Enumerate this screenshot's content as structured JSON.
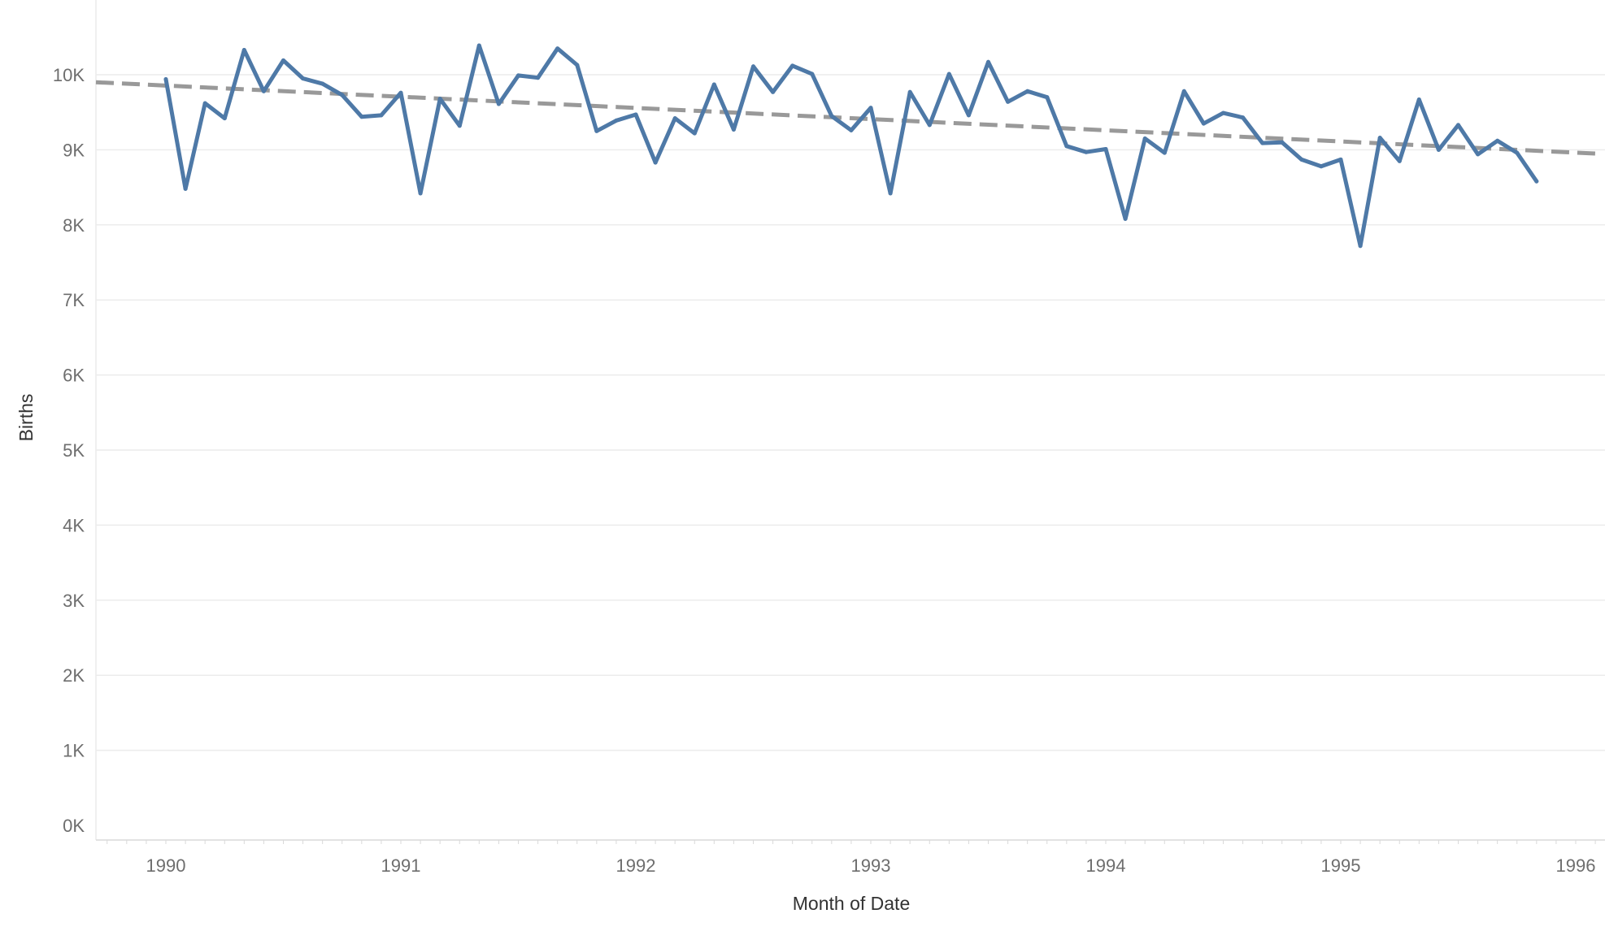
{
  "chart_data": {
    "type": "line",
    "title": "",
    "xlabel": "Month of Date",
    "ylabel": "Births",
    "x_ticks": [
      "1990",
      "1991",
      "1992",
      "1993",
      "1994",
      "1995",
      "1996"
    ],
    "y_ticks": [
      "0K",
      "1K",
      "2K",
      "3K",
      "4K",
      "5K",
      "6K",
      "7K",
      "8K",
      "9K",
      "10K"
    ],
    "xlim": [
      "1989-09",
      "1996-02"
    ],
    "ylim": [
      0,
      10900
    ],
    "grid": true,
    "legend": "none",
    "colors": {
      "series": "#4e79a7",
      "trend": "#999999",
      "grid": "#ececec",
      "axis": "#d9d9d9"
    },
    "series": [
      {
        "x": [
          "1990-01",
          "1990-02",
          "1990-03",
          "1990-04",
          "1990-05",
          "1990-06",
          "1990-07",
          "1990-08",
          "1990-09",
          "1990-10",
          "1990-11",
          "1990-12",
          "1991-01",
          "1991-02",
          "1991-03",
          "1991-04",
          "1991-05",
          "1991-06",
          "1991-07",
          "1991-08",
          "1991-09",
          "1991-10",
          "1991-11",
          "1991-12",
          "1992-01",
          "1992-02",
          "1992-03",
          "1992-04",
          "1992-05",
          "1992-06",
          "1992-07",
          "1992-08",
          "1992-09",
          "1992-10",
          "1992-11",
          "1992-12",
          "1993-01",
          "1993-02",
          "1993-03",
          "1993-04",
          "1993-05",
          "1993-06",
          "1993-07",
          "1993-08",
          "1993-09",
          "1993-10",
          "1993-11",
          "1993-12",
          "1994-01",
          "1994-02",
          "1994-03",
          "1994-04",
          "1994-05",
          "1994-06",
          "1994-07",
          "1994-08",
          "1994-09",
          "1994-10",
          "1994-11",
          "1994-12",
          "1995-01",
          "1995-02",
          "1995-03",
          "1995-04",
          "1995-05",
          "1995-06",
          "1995-07",
          "1995-08",
          "1995-09",
          "1995-10",
          "1995-11"
        ],
        "values": [
          9940,
          8480,
          9620,
          9420,
          10330,
          9780,
          10190,
          9950,
          9880,
          9730,
          9440,
          9460,
          9760,
          8420,
          9680,
          9320,
          10390,
          9610,
          9990,
          9960,
          10350,
          10130,
          9250,
          9390,
          9470,
          8830,
          9420,
          9220,
          9870,
          9270,
          10110,
          9770,
          10120,
          10010,
          9450,
          9260,
          9560,
          8420,
          9770,
          9330,
          10010,
          9460,
          10170,
          9640,
          9780,
          9700,
          9050,
          8970,
          9010,
          8080,
          9150,
          8960,
          9780,
          9350,
          9490,
          9430,
          9090,
          9100,
          8870,
          8780,
          8870,
          7720,
          9160,
          8850,
          9670,
          9000,
          9330,
          8940,
          9120,
          8960,
          8580
        ]
      }
    ],
    "trend_line": {
      "style": "dashed",
      "x": [
        "1989-09",
        "1996-02"
      ],
      "values": [
        9900,
        8950
      ]
    }
  }
}
